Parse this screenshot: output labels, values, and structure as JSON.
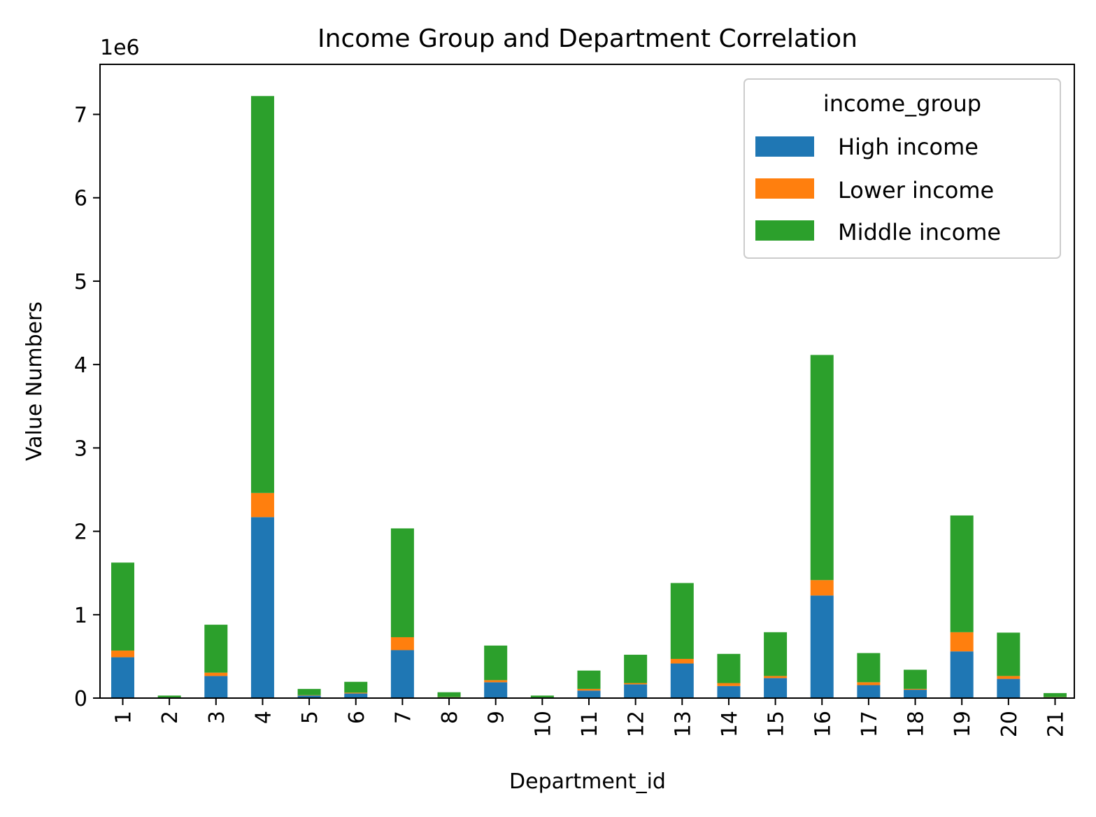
{
  "chart_data": {
    "type": "bar",
    "stacked": true,
    "title": "Income Group and Department Correlation",
    "xlabel": "Department_id",
    "ylabel": "Value Numbers",
    "y_offset_label": "1e6",
    "y_scale": 1000000,
    "ylim": [
      0,
      7600000
    ],
    "y_ticks": [
      0,
      1000000,
      2000000,
      3000000,
      4000000,
      5000000,
      6000000,
      7000000
    ],
    "y_tick_labels": [
      "0",
      "1",
      "2",
      "3",
      "4",
      "5",
      "6",
      "7"
    ],
    "categories": [
      "1",
      "2",
      "3",
      "4",
      "5",
      "6",
      "7",
      "8",
      "9",
      "10",
      "11",
      "12",
      "13",
      "14",
      "15",
      "16",
      "17",
      "18",
      "19",
      "20",
      "21"
    ],
    "legend_title": "income_group",
    "legend_position": "top-right",
    "grid": false,
    "series": [
      {
        "name": "High income",
        "color": "#1f77b4",
        "values": [
          490000,
          3000,
          265000,
          2170000,
          30000,
          55000,
          575000,
          10000,
          190000,
          3000,
          90000,
          165000,
          415000,
          145000,
          240000,
          1230000,
          155000,
          100000,
          560000,
          230000,
          10000
        ]
      },
      {
        "name": "Lower income",
        "color": "#ff7f0e",
        "values": [
          80000,
          1000,
          40000,
          290000,
          5000,
          10000,
          155000,
          2000,
          25000,
          1000,
          20000,
          15000,
          55000,
          35000,
          25000,
          185000,
          35000,
          10000,
          230000,
          35000,
          2000
        ]
      },
      {
        "name": "Middle income",
        "color": "#2ca02c",
        "values": [
          1055000,
          26000,
          575000,
          4760000,
          75000,
          130000,
          1305000,
          58000,
          415000,
          26000,
          220000,
          340000,
          910000,
          350000,
          525000,
          2700000,
          350000,
          230000,
          1400000,
          520000,
          48000
        ]
      }
    ]
  }
}
